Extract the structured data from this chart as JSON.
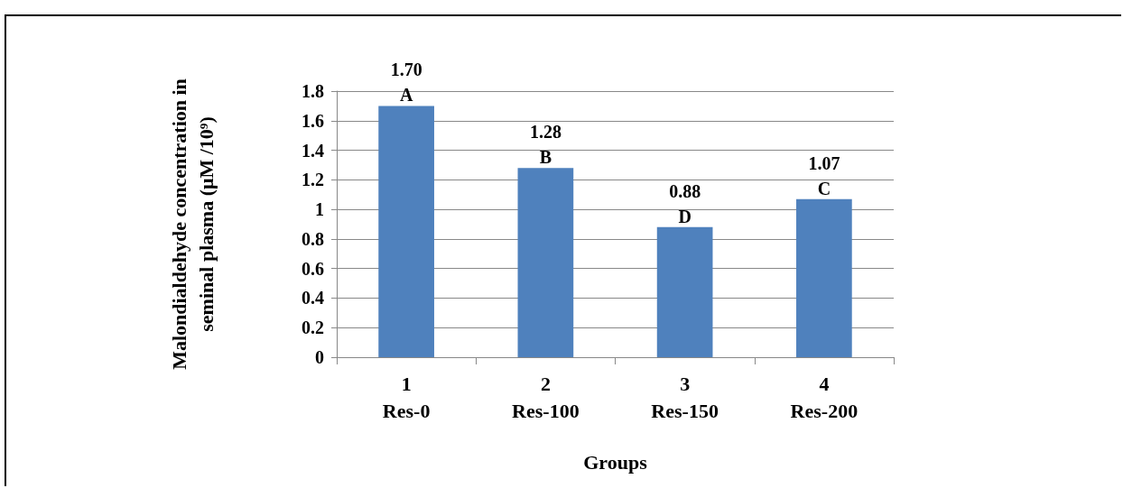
{
  "chart_data": {
    "type": "bar",
    "categories": [
      "1\nRes-0",
      "2\nRes-100",
      "3\nRes-150",
      "4\nRes-200"
    ],
    "values": [
      1.7,
      1.28,
      0.88,
      1.07
    ],
    "value_labels": [
      "1.70",
      "1.28",
      "0.88",
      "1.07"
    ],
    "color": "#4f81bd",
    "xlabel": "Groups",
    "ylabel": "Malondialdehyde concentration in seminal plasma (μM /10⁹)",
    "ylim": [
      0,
      1.8
    ],
    "yticks": [
      0,
      0.2,
      0.4,
      0.6,
      0.8,
      1,
      1.2,
      1.4,
      1.6,
      1.8
    ],
    "annotations": [
      {
        "text": "A",
        "x": "1\nRes-0",
        "y": 1.7
      },
      {
        "text": "B",
        "x": "2\nRes-100",
        "y": 1.28
      },
      {
        "text": "D",
        "x": "3\nRes-150",
        "y": 0.88
      },
      {
        "text": "C",
        "x": "4\nRes-200",
        "y": 1.07
      }
    ],
    "grid": "y"
  }
}
